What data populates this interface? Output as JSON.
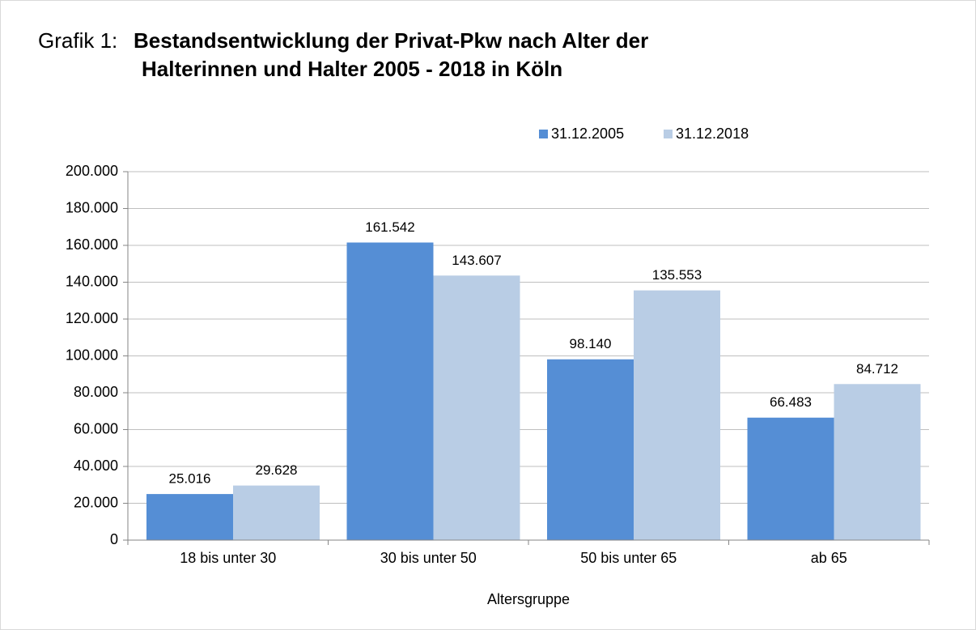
{
  "chart_data": {
    "type": "bar",
    "title_prefix": "Grafik 1:",
    "title": [
      "Bestandsentwicklung der Privat-Pkw nach Alter der",
      "Halterinnen und Halter 2005 - 2018 in Köln"
    ],
    "xlabel": "Altersgruppe",
    "categories": [
      "18 bis unter 30",
      "30 bis unter 50",
      "50 bis unter 65",
      "ab 65"
    ],
    "series": [
      {
        "name": "31.12.2005",
        "color": "#558ed5",
        "values": [
          25016,
          161542,
          98140,
          66483
        ],
        "value_labels": [
          "25.016",
          "161.542",
          "98.140",
          "66.483"
        ]
      },
      {
        "name": "31.12.2018",
        "color": "#b9cde5",
        "values": [
          29628,
          143607,
          135553,
          84712
        ],
        "value_labels": [
          "29.628",
          "143.607",
          "135.553",
          "84.712"
        ]
      }
    ],
    "ylim": [
      0,
      200000
    ],
    "yticks": [
      0,
      {
        "value": 20000,
        "label": "20.000"
      },
      {
        "value": 40000,
        "label": "40.000"
      },
      {
        "value": 60000,
        "label": "60.000"
      },
      {
        "value": 80000,
        "label": "80.000"
      },
      {
        "value": 100000,
        "label": "100.000"
      },
      {
        "value": 120000,
        "label": "120.000"
      },
      {
        "value": 140000,
        "label": "140.000"
      },
      {
        "value": 160000,
        "label": "160.000"
      },
      {
        "value": 180000,
        "label": "180.000"
      },
      {
        "value": 200000,
        "label": "200.000"
      }
    ],
    "grid": true,
    "legend": "top"
  }
}
